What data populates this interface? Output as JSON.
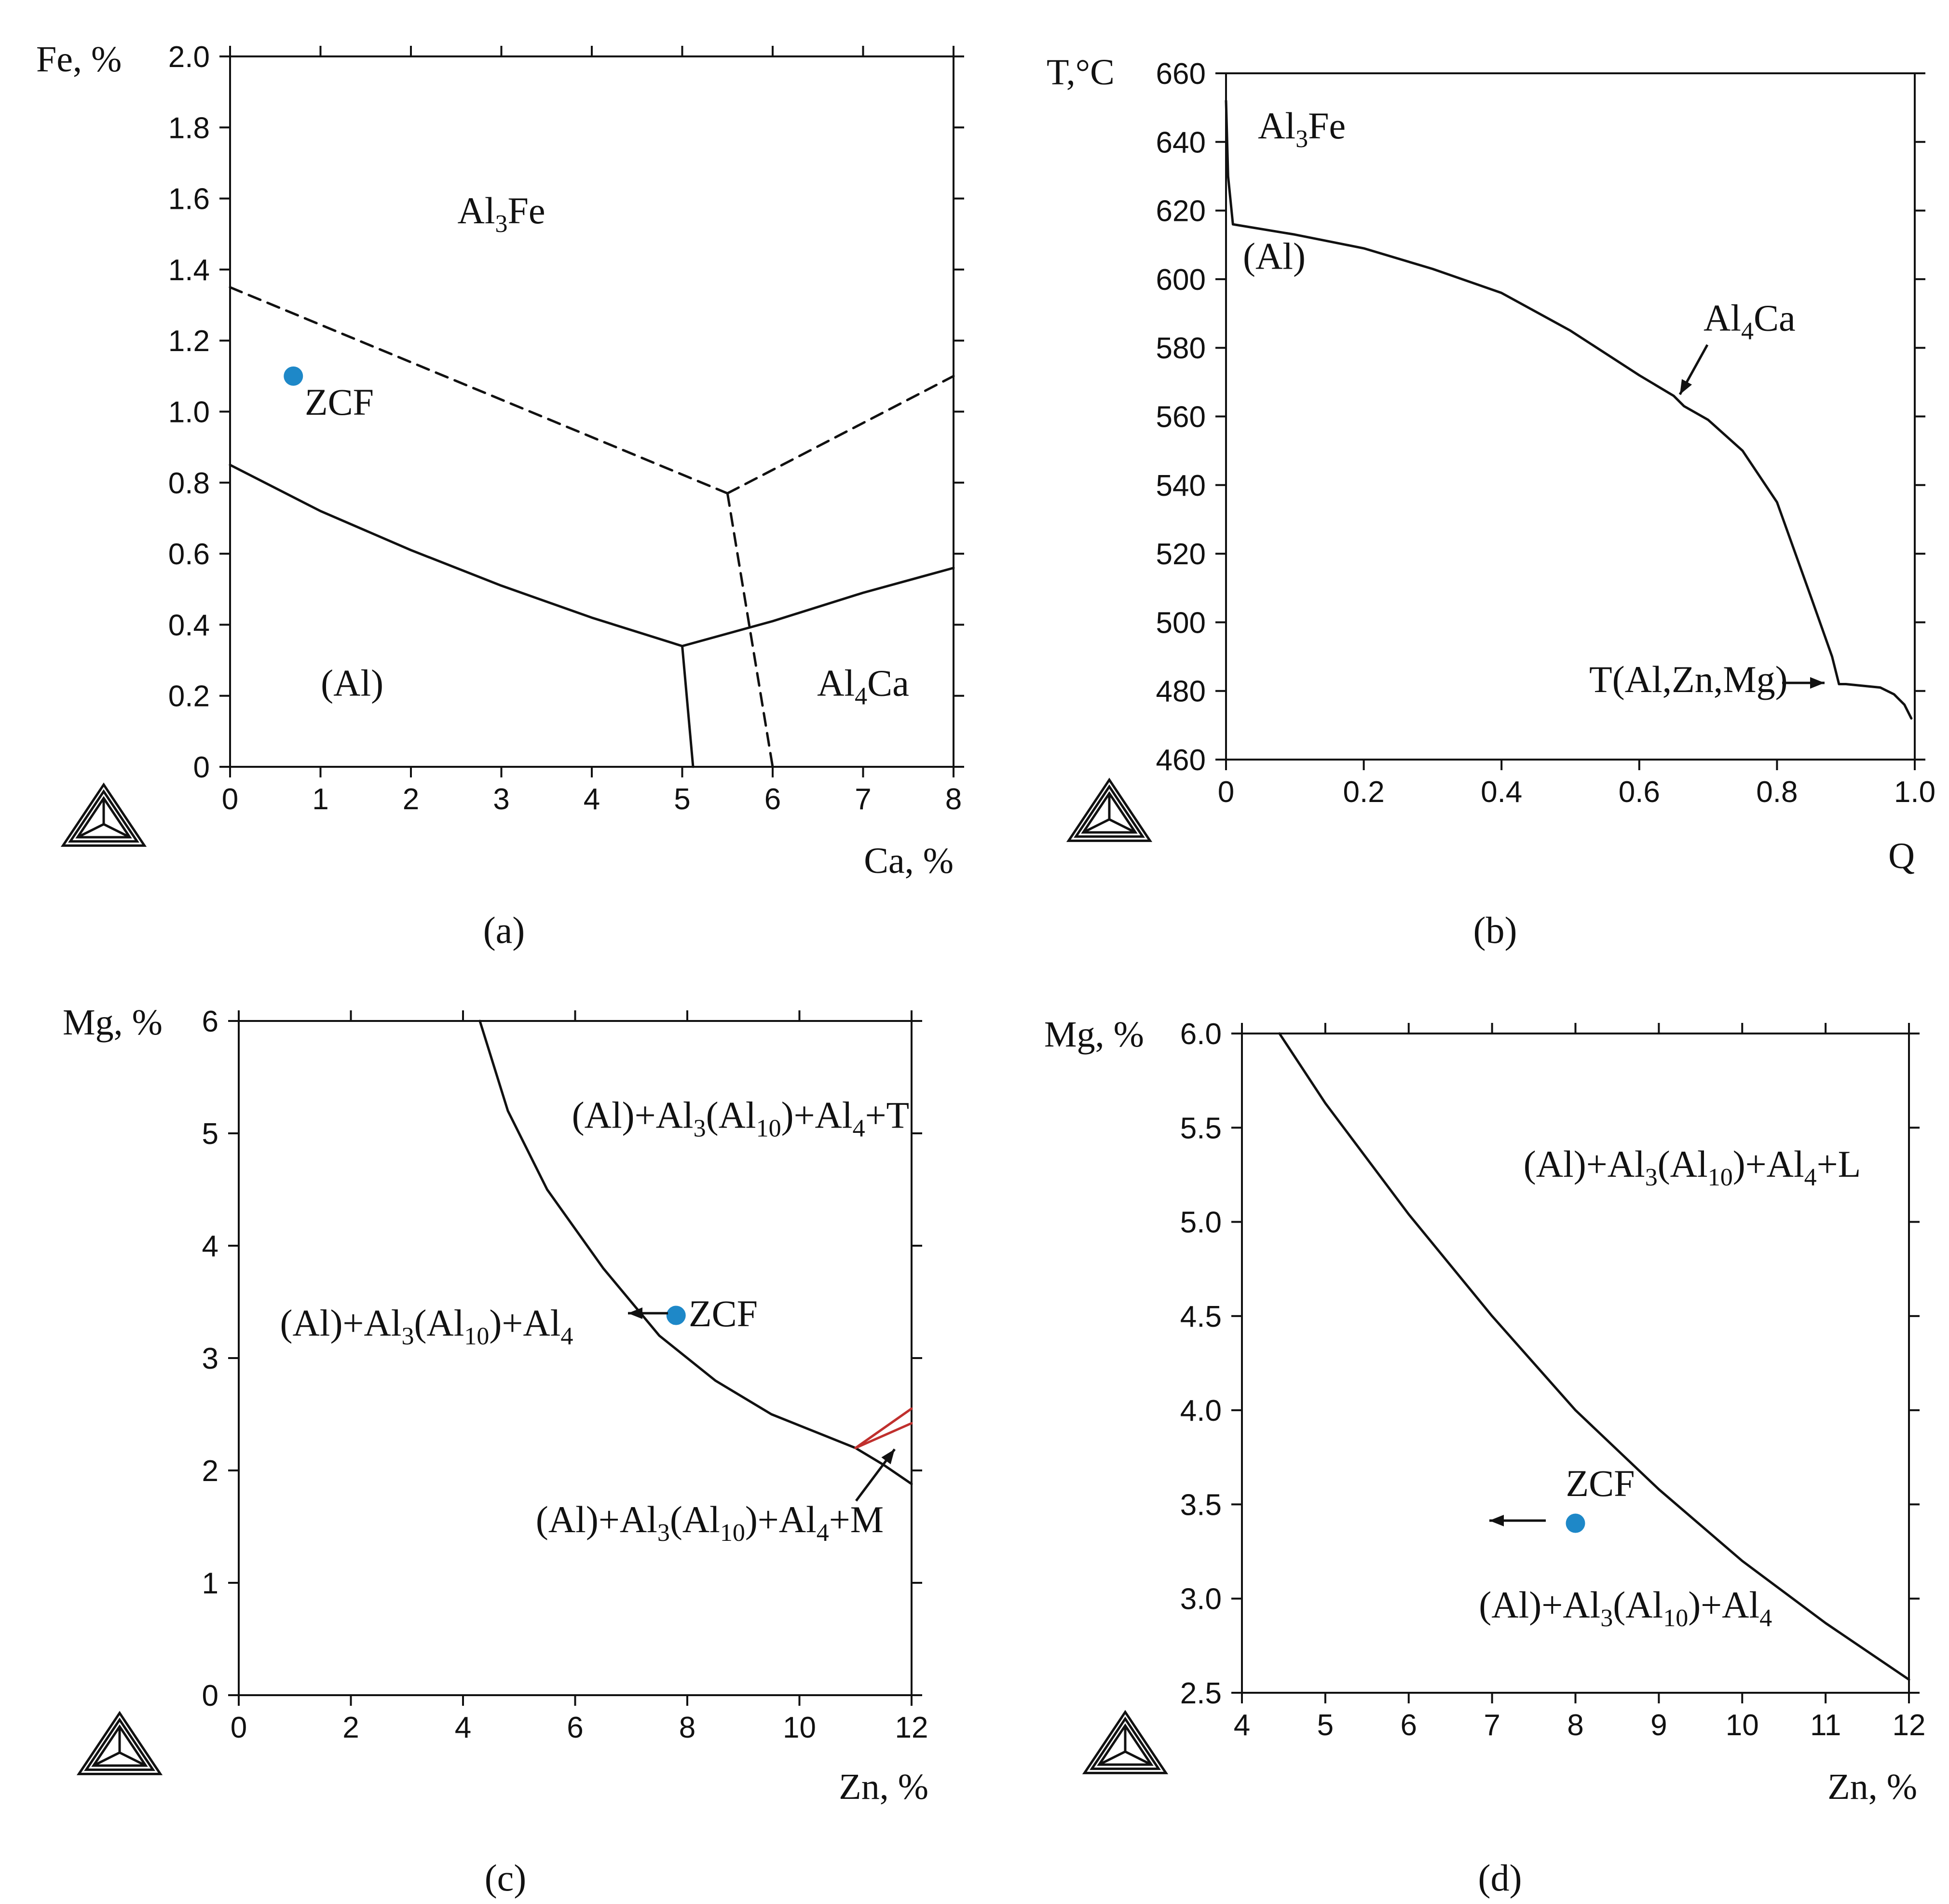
{
  "figure": {
    "colors": {
      "ink": "#111111",
      "marker": "#1e88c8",
      "red": "#c0302e",
      "background": "#ffffff"
    },
    "logo_icon": "thermo-calc-triangle-icon"
  },
  "chart_data": [
    {
      "id": "a",
      "type": "line",
      "caption": "(a)",
      "xlabel": "Ca, %",
      "ylabel": "Fe, %",
      "xlim": [
        0,
        8
      ],
      "ylim": [
        0,
        2.0
      ],
      "xticks": [
        0,
        1,
        2,
        3,
        4,
        5,
        6,
        7,
        8
      ],
      "xtick_labels": [
        "0",
        "1",
        "2",
        "3",
        "4",
        "5",
        "6",
        "7",
        "8"
      ],
      "yticks": [
        0,
        0.2,
        0.4,
        0.6,
        0.8,
        1.0,
        1.2,
        1.4,
        1.6,
        1.8,
        2.0
      ],
      "ytick_labels": [
        "0",
        "0.2",
        "0.4",
        "0.6",
        "0.8",
        "1.0",
        "1.2",
        "1.4",
        "1.6",
        "1.8",
        "2.0"
      ],
      "series": [
        {
          "name": "solid-boundary-left",
          "style": "solid",
          "points": [
            [
              0,
              0.85
            ],
            [
              1,
              0.72
            ],
            [
              2,
              0.61
            ],
            [
              3,
              0.51
            ],
            [
              4,
              0.42
            ],
            [
              5,
              0.34
            ]
          ]
        },
        {
          "name": "solid-boundary-right",
          "style": "solid",
          "points": [
            [
              5,
              0.34
            ],
            [
              6,
              0.41
            ],
            [
              7,
              0.49
            ],
            [
              8,
              0.56
            ]
          ]
        },
        {
          "name": "solid-boundary-down",
          "style": "solid",
          "points": [
            [
              5,
              0.34
            ],
            [
              5.12,
              0
            ]
          ]
        },
        {
          "name": "dashed-boundary-left",
          "style": "dashed",
          "points": [
            [
              0,
              1.35
            ],
            [
              5.5,
              0.77
            ]
          ]
        },
        {
          "name": "dashed-boundary-right",
          "style": "dashed",
          "points": [
            [
              5.5,
              0.77
            ],
            [
              8,
              1.1
            ]
          ]
        },
        {
          "name": "dashed-boundary-down",
          "style": "dashed",
          "points": [
            [
              5.5,
              0.77
            ],
            [
              6,
              0
            ]
          ]
        }
      ],
      "markers": [
        {
          "x": 0.7,
          "y": 1.1,
          "label": "ZCF"
        }
      ],
      "regions": [
        {
          "base": "Al",
          "sub": "3",
          "rest": "Fe",
          "x": 3.0,
          "y": 1.53
        },
        {
          "base": "(Al)",
          "sub": "",
          "rest": "",
          "x": 1.35,
          "y": 0.2
        },
        {
          "base": "Al",
          "sub": "4",
          "rest": "Ca",
          "x": 7.0,
          "y": 0.2
        }
      ]
    },
    {
      "id": "b",
      "type": "line",
      "caption": "(b)",
      "xlabel": "Q",
      "ylabel": "T,°C",
      "xlim": [
        0,
        1.0
      ],
      "ylim": [
        460,
        660
      ],
      "xticks": [
        0,
        0.2,
        0.4,
        0.6,
        0.8,
        1.0
      ],
      "xtick_labels": [
        "0",
        "0.2",
        "0.4",
        "0.6",
        "0.8",
        "1.0"
      ],
      "yticks": [
        460,
        480,
        500,
        520,
        540,
        560,
        580,
        600,
        620,
        640,
        660
      ],
      "ytick_labels": [
        "460",
        "480",
        "500",
        "520",
        "540",
        "560",
        "580",
        "600",
        "620",
        "640",
        "660"
      ],
      "series": [
        {
          "name": "solidification-curve",
          "style": "solid",
          "points": [
            [
              0,
              652
            ],
            [
              0.003,
              630
            ],
            [
              0.01,
              616
            ],
            [
              0.1,
              613
            ],
            [
              0.2,
              609
            ],
            [
              0.3,
              603
            ],
            [
              0.4,
              596
            ],
            [
              0.5,
              585
            ],
            [
              0.6,
              572
            ],
            [
              0.65,
              566
            ],
            [
              0.665,
              563
            ],
            [
              0.7,
              559
            ],
            [
              0.75,
              550
            ],
            [
              0.8,
              535
            ],
            [
              0.85,
              507
            ],
            [
              0.88,
              490
            ],
            [
              0.89,
              482
            ],
            [
              0.9,
              482
            ],
            [
              0.95,
              481
            ],
            [
              0.97,
              479
            ],
            [
              0.985,
              476
            ],
            [
              0.995,
              472
            ]
          ]
        }
      ],
      "regions": [
        {
          "base": "Al",
          "sub": "3",
          "rest": "Fe",
          "x": 0.11,
          "y": 641
        },
        {
          "base": "(Al)",
          "sub": "",
          "rest": "",
          "x": 0.07,
          "y": 603
        },
        {
          "base": "Al",
          "sub": "4",
          "rest": "Ca",
          "x": 0.76,
          "y": 585
        }
      ],
      "annotations": [
        {
          "text": "T(Al,Zn,Mg)",
          "x": 0.77,
          "y": 480
        }
      ]
    },
    {
      "id": "c",
      "type": "line",
      "caption": "(c)",
      "xlabel": "Zn, %",
      "ylabel": "Mg, %",
      "xlim": [
        0,
        12
      ],
      "ylim": [
        0,
        6
      ],
      "xticks": [
        0,
        2,
        4,
        6,
        8,
        10,
        12
      ],
      "xtick_labels": [
        "0",
        "2",
        "4",
        "6",
        "8",
        "10",
        "12"
      ],
      "yticks": [
        0,
        1,
        2,
        3,
        4,
        5,
        6
      ],
      "ytick_labels": [
        "0",
        "1",
        "2",
        "3",
        "4",
        "5",
        "6"
      ],
      "series": [
        {
          "name": "phase-boundary",
          "style": "solid",
          "points": [
            [
              4.3,
              6
            ],
            [
              4.8,
              5.2
            ],
            [
              5.5,
              4.5
            ],
            [
              6.5,
              3.8
            ],
            [
              7.5,
              3.2
            ],
            [
              8.5,
              2.8
            ],
            [
              9.5,
              2.5
            ],
            [
              10.5,
              2.3
            ],
            [
              11.0,
              2.2
            ],
            [
              11.5,
              2.05
            ],
            [
              12,
              1.88
            ]
          ]
        },
        {
          "name": "red-boundary-upper",
          "style": "red",
          "points": [
            [
              11.0,
              2.2
            ],
            [
              12,
              2.55
            ]
          ]
        },
        {
          "name": "red-boundary-lower",
          "style": "red",
          "points": [
            [
              11.0,
              2.2
            ],
            [
              12,
              2.42
            ]
          ]
        }
      ],
      "markers": [
        {
          "x": 7.8,
          "y": 3.38,
          "label": "ZCF"
        }
      ],
      "regions": [
        {
          "base": "(Al)+Al",
          "sub": "3",
          "mid": "(Al",
          "sub2": "10",
          "mid2": ")+Al",
          "sub3": "4",
          "rest": "+T",
          "x": 8.95,
          "y": 5.05
        },
        {
          "base": "(Al)+Al",
          "sub": "3",
          "mid": "(Al",
          "sub2": "10",
          "mid2": ")+Al",
          "sub3": "4",
          "rest": "",
          "x": 3.35,
          "y": 3.2
        },
        {
          "base": "(Al)+Al",
          "sub": "3",
          "mid": "(Al",
          "sub2": "10",
          "mid2": ")+Al",
          "sub3": "4",
          "rest": "+M",
          "x": 8.4,
          "y": 1.45
        }
      ]
    },
    {
      "id": "d",
      "type": "line",
      "caption": "(d)",
      "xlabel": "Zn, %",
      "ylabel": "Mg, %",
      "xlim": [
        4,
        12
      ],
      "ylim": [
        2.5,
        6.0
      ],
      "xticks": [
        4,
        5,
        6,
        7,
        8,
        9,
        10,
        11,
        12
      ],
      "xtick_labels": [
        "4",
        "5",
        "6",
        "7",
        "8",
        "9",
        "10",
        "11",
        "12"
      ],
      "yticks": [
        2.5,
        3.0,
        3.5,
        4.0,
        4.5,
        5.0,
        5.5,
        6.0
      ],
      "ytick_labels": [
        "2.5",
        "3.0",
        "3.5",
        "4.0",
        "4.5",
        "5.0",
        "5.5",
        "6.0"
      ],
      "series": [
        {
          "name": "phase-boundary",
          "style": "solid",
          "points": [
            [
              4.45,
              6.0
            ],
            [
              5,
              5.63
            ],
            [
              6,
              5.04
            ],
            [
              7,
              4.5
            ],
            [
              8,
              4.0
            ],
            [
              9,
              3.58
            ],
            [
              10,
              3.2
            ],
            [
              11,
              2.87
            ],
            [
              12,
              2.57
            ]
          ]
        }
      ],
      "markers": [
        {
          "x": 8.0,
          "y": 3.4,
          "label": "ZCF"
        }
      ],
      "regions": [
        {
          "base": "(Al)+Al",
          "sub": "3",
          "mid": "(Al",
          "sub2": "10",
          "mid2": ")+Al",
          "sub3": "4",
          "rest": "+L",
          "x": 9.4,
          "y": 5.24
        },
        {
          "base": "(Al)+Al",
          "sub": "3",
          "mid": "(Al",
          "sub2": "10",
          "mid2": ")+Al",
          "sub3": "4",
          "rest": "",
          "x": 8.6,
          "y": 2.9
        }
      ]
    }
  ]
}
